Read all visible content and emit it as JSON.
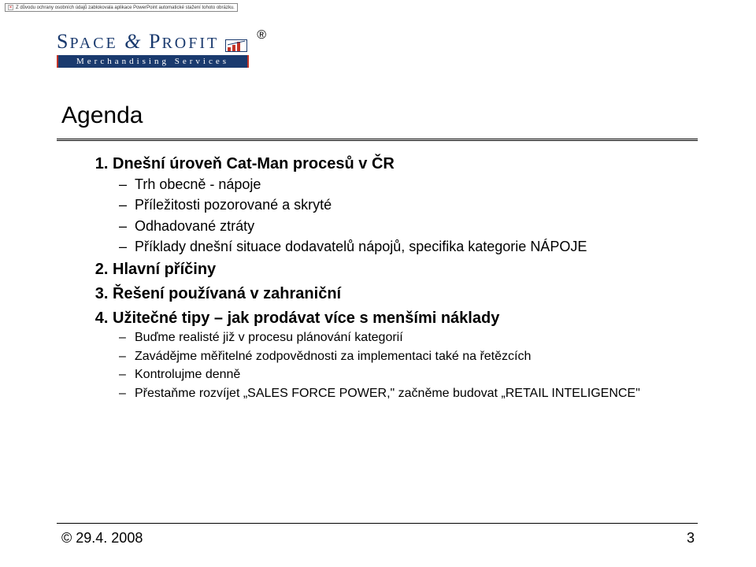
{
  "notice": {
    "text": "Z důvodu ochrany osobních údajů zablokovala aplikace PowerPoint automatické stažení tohoto obrázku."
  },
  "logo": {
    "brand_prefix": "S",
    "brand_word1_rest": "PACE",
    "amp": "&",
    "brand_prefix2": "P",
    "brand_word2_rest": "ROFIT",
    "registered": "®",
    "subtitle": "Merchandising Services"
  },
  "title": "Agenda",
  "agenda": [
    {
      "heading": "Dnešní úroveň Cat-Man procesů v ČR",
      "items": [
        "Trh obecně - nápoje",
        "Příležitosti pozorované a skryté",
        "Odhadované ztráty",
        "Příklady dnešní situace dodavatelů nápojů, specifika kategorie NÁPOJE"
      ]
    },
    {
      "heading": "Hlavní příčiny",
      "items": []
    },
    {
      "heading": "Řešení používaná v zahraniční",
      "items": []
    },
    {
      "heading": "Užitečné tipy – jak prodávat více s menšími náklady",
      "items": [
        "Buďme realisté již v procesu plánování kategorií",
        "Zavádějme měřitelné zodpovědnosti za implementaci také na řetězcích",
        "Kontrolujme denně",
        "Přestaňme rozvíjet „SALES FORCE POWER,\" začněme budovat „RETAIL INTELIGENCE\""
      ],
      "small": true
    }
  ],
  "footer": {
    "date": "© 29.4. 2008",
    "page": "3"
  },
  "colors": {
    "brand_blue": "#1a3a6e",
    "brand_red": "#c33427",
    "text": "#000000",
    "background": "#ffffff"
  }
}
